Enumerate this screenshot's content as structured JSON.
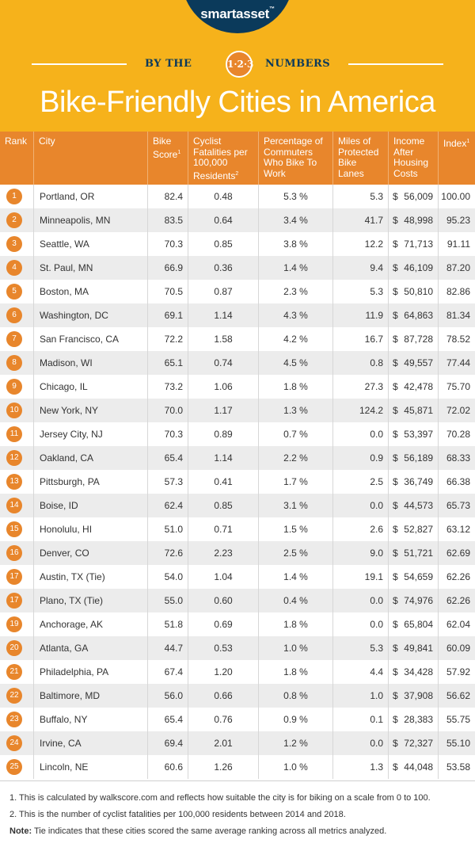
{
  "header": {
    "logo": "smartasset",
    "logo_mark": "™",
    "by_the": "BY THE",
    "badge": "1·2·3",
    "numbers": "NUMBERS",
    "title": "Bike-Friendly Cities in America"
  },
  "chart_data": {
    "type": "table",
    "columns": [
      "Rank",
      "City",
      "Bike Score",
      "Cyclist Fatalities per 100,000 Residents",
      "Percentage of Commuters Who Bike To Work",
      "Miles of Protected Bike Lanes",
      "Income After Housing Costs",
      "Index"
    ],
    "rows": [
      {
        "rank": "1",
        "city": "Portland, OR",
        "bike_score": "82.4",
        "fatalities": "0.48",
        "pct": "5.3 %",
        "miles": "5.3",
        "income": "56,009",
        "index": "100.00"
      },
      {
        "rank": "2",
        "city": "Minneapolis, MN",
        "bike_score": "83.5",
        "fatalities": "0.64",
        "pct": "3.4 %",
        "miles": "41.7",
        "income": "48,998",
        "index": "95.23"
      },
      {
        "rank": "3",
        "city": "Seattle, WA",
        "bike_score": "70.3",
        "fatalities": "0.85",
        "pct": "3.8 %",
        "miles": "12.2",
        "income": "71,713",
        "index": "91.11"
      },
      {
        "rank": "4",
        "city": "St. Paul, MN",
        "bike_score": "66.9",
        "fatalities": "0.36",
        "pct": "1.4 %",
        "miles": "9.4",
        "income": "46,109",
        "index": "87.20"
      },
      {
        "rank": "5",
        "city": "Boston, MA",
        "bike_score": "70.5",
        "fatalities": "0.87",
        "pct": "2.3 %",
        "miles": "5.3",
        "income": "50,810",
        "index": "82.86"
      },
      {
        "rank": "6",
        "city": "Washington, DC",
        "bike_score": "69.1",
        "fatalities": "1.14",
        "pct": "4.3 %",
        "miles": "11.9",
        "income": "64,863",
        "index": "81.34"
      },
      {
        "rank": "7",
        "city": "San Francisco, CA",
        "bike_score": "72.2",
        "fatalities": "1.58",
        "pct": "4.2 %",
        "miles": "16.7",
        "income": "87,728",
        "index": "78.52"
      },
      {
        "rank": "8",
        "city": "Madison, WI",
        "bike_score": "65.1",
        "fatalities": "0.74",
        "pct": "4.5 %",
        "miles": "0.8",
        "income": "49,557",
        "index": "77.44"
      },
      {
        "rank": "9",
        "city": "Chicago, IL",
        "bike_score": "73.2",
        "fatalities": "1.06",
        "pct": "1.8 %",
        "miles": "27.3",
        "income": "42,478",
        "index": "75.70"
      },
      {
        "rank": "10",
        "city": "New York, NY",
        "bike_score": "70.0",
        "fatalities": "1.17",
        "pct": "1.3 %",
        "miles": "124.2",
        "income": "45,871",
        "index": "72.02"
      },
      {
        "rank": "11",
        "city": "Jersey City, NJ",
        "bike_score": "70.3",
        "fatalities": "0.89",
        "pct": "0.7 %",
        "miles": "0.0",
        "income": "53,397",
        "index": "70.28"
      },
      {
        "rank": "12",
        "city": "Oakland, CA",
        "bike_score": "65.4",
        "fatalities": "1.14",
        "pct": "2.2 %",
        "miles": "0.9",
        "income": "56,189",
        "index": "68.33"
      },
      {
        "rank": "13",
        "city": "Pittsburgh, PA",
        "bike_score": "57.3",
        "fatalities": "0.41",
        "pct": "1.7 %",
        "miles": "2.5",
        "income": "36,749",
        "index": "66.38"
      },
      {
        "rank": "14",
        "city": "Boise, ID",
        "bike_score": "62.4",
        "fatalities": "0.85",
        "pct": "3.1 %",
        "miles": "0.0",
        "income": "44,573",
        "index": "65.73"
      },
      {
        "rank": "15",
        "city": "Honolulu, HI",
        "bike_score": "51.0",
        "fatalities": "0.71",
        "pct": "1.5 %",
        "miles": "2.6",
        "income": "52,827",
        "index": "63.12"
      },
      {
        "rank": "16",
        "city": "Denver, CO",
        "bike_score": "72.6",
        "fatalities": "2.23",
        "pct": "2.5 %",
        "miles": "9.0",
        "income": "51,721",
        "index": "62.69"
      },
      {
        "rank": "17",
        "city": "Austin, TX (Tie)",
        "bike_score": "54.0",
        "fatalities": "1.04",
        "pct": "1.4 %",
        "miles": "19.1",
        "income": "54,659",
        "index": "62.26"
      },
      {
        "rank": "17",
        "city": "Plano, TX (Tie)",
        "bike_score": "55.0",
        "fatalities": "0.60",
        "pct": "0.4 %",
        "miles": "0.0",
        "income": "74,976",
        "index": "62.26"
      },
      {
        "rank": "19",
        "city": "Anchorage, AK",
        "bike_score": "51.8",
        "fatalities": "0.69",
        "pct": "1.8 %",
        "miles": "0.0",
        "income": "65,804",
        "index": "62.04"
      },
      {
        "rank": "20",
        "city": "Atlanta, GA",
        "bike_score": "44.7",
        "fatalities": "0.53",
        "pct": "1.0 %",
        "miles": "5.3",
        "income": "49,841",
        "index": "60.09"
      },
      {
        "rank": "21",
        "city": "Philadelphia, PA",
        "bike_score": "67.4",
        "fatalities": "1.20",
        "pct": "1.8 %",
        "miles": "4.4",
        "income": "34,428",
        "index": "57.92"
      },
      {
        "rank": "22",
        "city": "Baltimore, MD",
        "bike_score": "56.0",
        "fatalities": "0.66",
        "pct": "0.8 %",
        "miles": "1.0",
        "income": "37,908",
        "index": "56.62"
      },
      {
        "rank": "23",
        "city": "Buffalo, NY",
        "bike_score": "65.4",
        "fatalities": "0.76",
        "pct": "0.9 %",
        "miles": "0.1",
        "income": "28,383",
        "index": "55.75"
      },
      {
        "rank": "24",
        "city": "Irvine, CA",
        "bike_score": "69.4",
        "fatalities": "2.01",
        "pct": "1.2 %",
        "miles": "0.0",
        "income": "72,327",
        "index": "55.10"
      },
      {
        "rank": "25",
        "city": "Lincoln, NE",
        "bike_score": "60.6",
        "fatalities": "1.26",
        "pct": "1.0 %",
        "miles": "1.3",
        "income": "44,048",
        "index": "53.58"
      }
    ]
  },
  "table_header": {
    "rank": "Rank",
    "city": "City",
    "bike_score": "Bike Score",
    "bike_score_sup": "1",
    "fatalities": "Cyclist Fatalities per 100,000 Residents",
    "fatalities_sup": "2",
    "pct": "Percentage of Commuters Who Bike To Work",
    "miles": "Miles of Protected Bike Lanes",
    "income": "Income After Housing Costs",
    "index": "Index",
    "index_sup": "1"
  },
  "currency": "$",
  "footnotes": {
    "fn1": "1.  This is calculated by walkscore.com and reflects how suitable the city is for biking on a scale from 0 to 100.",
    "fn2": "2. This is the number of cyclist fatalities per 100,000 residents between 2014 and 2018.",
    "note_label": "Note:",
    "note_text": " Tie indicates that these cities scored the same average ranking across all metrics analyzed."
  }
}
